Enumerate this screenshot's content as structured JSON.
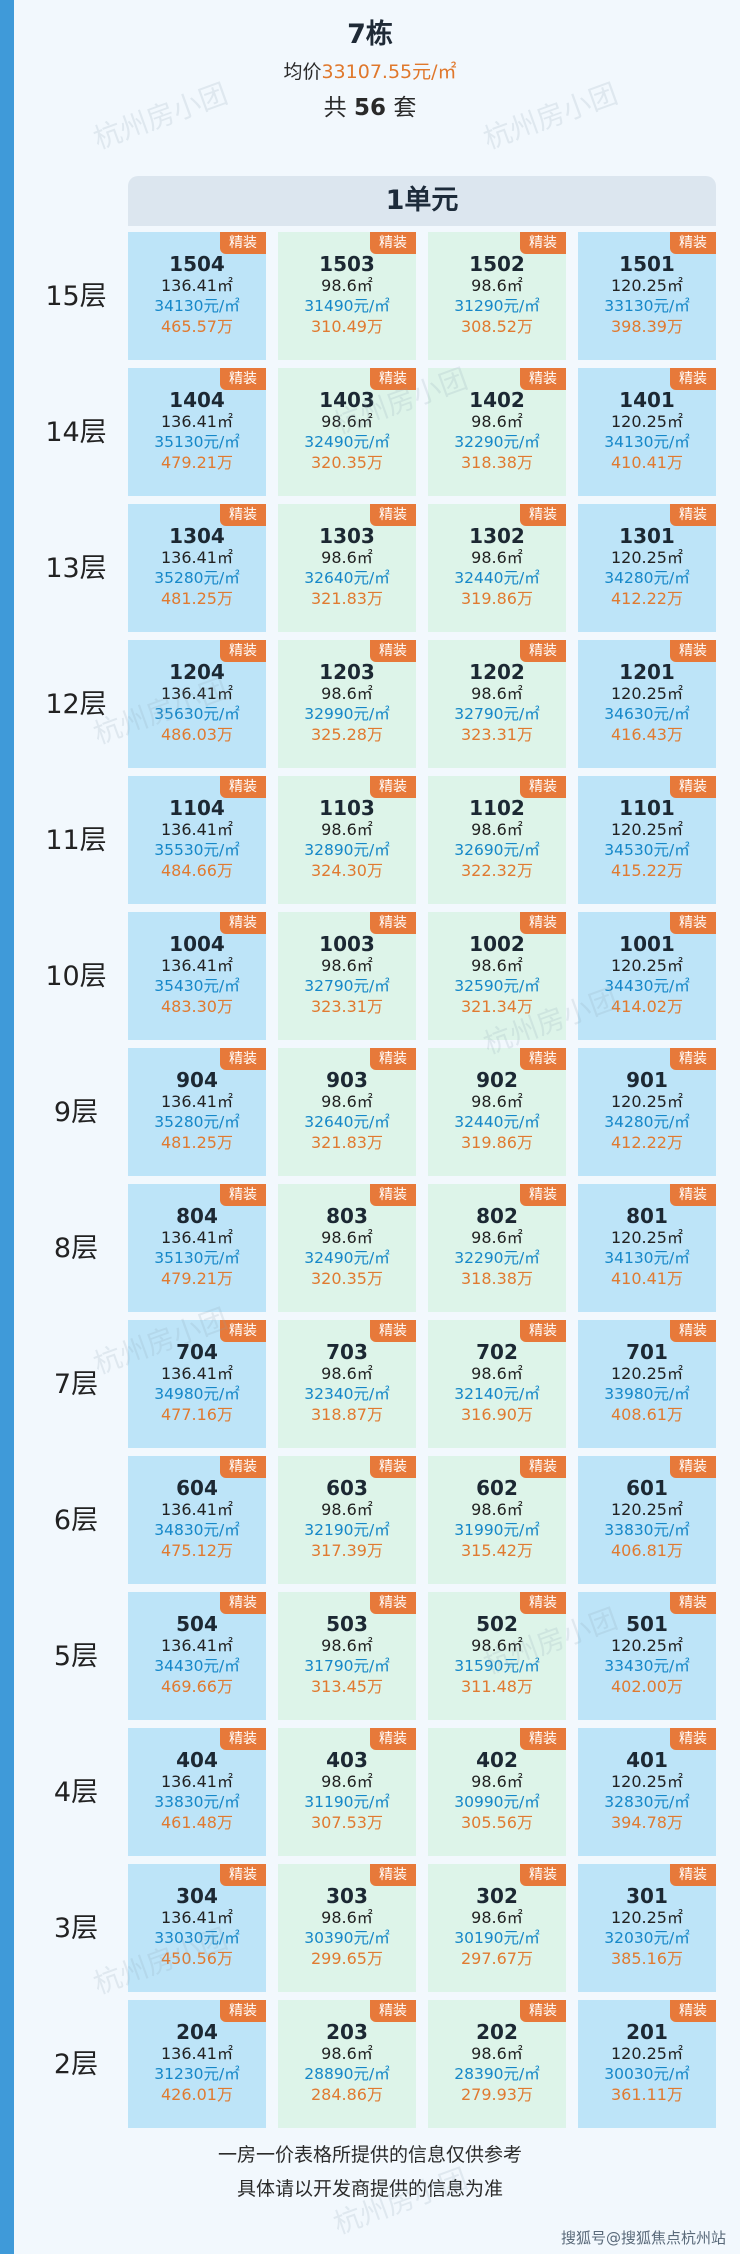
{
  "header": {
    "building": "7栋",
    "avg_price_label": "均价",
    "avg_price_value": "33107.55元/㎡",
    "count_prefix": "共",
    "count_value": "56",
    "count_suffix": "套"
  },
  "unit_label": "1单元",
  "badge_label": "精装",
  "floors": [
    {
      "label": "15层",
      "units": [
        {
          "room": "1504",
          "area": "136.41㎡",
          "unit_price": "34130元/㎡",
          "total": "465.57万"
        },
        {
          "room": "1503",
          "area": "98.6㎡",
          "unit_price": "31490元/㎡",
          "total": "310.49万"
        },
        {
          "room": "1502",
          "area": "98.6㎡",
          "unit_price": "31290元/㎡",
          "total": "308.52万"
        },
        {
          "room": "1501",
          "area": "120.25㎡",
          "unit_price": "33130元/㎡",
          "total": "398.39万"
        }
      ]
    },
    {
      "label": "14层",
      "units": [
        {
          "room": "1404",
          "area": "136.41㎡",
          "unit_price": "35130元/㎡",
          "total": "479.21万"
        },
        {
          "room": "1403",
          "area": "98.6㎡",
          "unit_price": "32490元/㎡",
          "total": "320.35万"
        },
        {
          "room": "1402",
          "area": "98.6㎡",
          "unit_price": "32290元/㎡",
          "total": "318.38万"
        },
        {
          "room": "1401",
          "area": "120.25㎡",
          "unit_price": "34130元/㎡",
          "total": "410.41万"
        }
      ]
    },
    {
      "label": "13层",
      "units": [
        {
          "room": "1304",
          "area": "136.41㎡",
          "unit_price": "35280元/㎡",
          "total": "481.25万"
        },
        {
          "room": "1303",
          "area": "98.6㎡",
          "unit_price": "32640元/㎡",
          "total": "321.83万"
        },
        {
          "room": "1302",
          "area": "98.6㎡",
          "unit_price": "32440元/㎡",
          "total": "319.86万"
        },
        {
          "room": "1301",
          "area": "120.25㎡",
          "unit_price": "34280元/㎡",
          "total": "412.22万"
        }
      ]
    },
    {
      "label": "12层",
      "units": [
        {
          "room": "1204",
          "area": "136.41㎡",
          "unit_price": "35630元/㎡",
          "total": "486.03万"
        },
        {
          "room": "1203",
          "area": "98.6㎡",
          "unit_price": "32990元/㎡",
          "total": "325.28万"
        },
        {
          "room": "1202",
          "area": "98.6㎡",
          "unit_price": "32790元/㎡",
          "total": "323.31万"
        },
        {
          "room": "1201",
          "area": "120.25㎡",
          "unit_price": "34630元/㎡",
          "total": "416.43万"
        }
      ]
    },
    {
      "label": "11层",
      "units": [
        {
          "room": "1104",
          "area": "136.41㎡",
          "unit_price": "35530元/㎡",
          "total": "484.66万"
        },
        {
          "room": "1103",
          "area": "98.6㎡",
          "unit_price": "32890元/㎡",
          "total": "324.30万"
        },
        {
          "room": "1102",
          "area": "98.6㎡",
          "unit_price": "32690元/㎡",
          "total": "322.32万"
        },
        {
          "room": "1101",
          "area": "120.25㎡",
          "unit_price": "34530元/㎡",
          "total": "415.22万"
        }
      ]
    },
    {
      "label": "10层",
      "units": [
        {
          "room": "1004",
          "area": "136.41㎡",
          "unit_price": "35430元/㎡",
          "total": "483.30万"
        },
        {
          "room": "1003",
          "area": "98.6㎡",
          "unit_price": "32790元/㎡",
          "total": "323.31万"
        },
        {
          "room": "1002",
          "area": "98.6㎡",
          "unit_price": "32590元/㎡",
          "total": "321.34万"
        },
        {
          "room": "1001",
          "area": "120.25㎡",
          "unit_price": "34430元/㎡",
          "total": "414.02万"
        }
      ]
    },
    {
      "label": "9层",
      "units": [
        {
          "room": "904",
          "area": "136.41㎡",
          "unit_price": "35280元/㎡",
          "total": "481.25万"
        },
        {
          "room": "903",
          "area": "98.6㎡",
          "unit_price": "32640元/㎡",
          "total": "321.83万"
        },
        {
          "room": "902",
          "area": "98.6㎡",
          "unit_price": "32440元/㎡",
          "total": "319.86万"
        },
        {
          "room": "901",
          "area": "120.25㎡",
          "unit_price": "34280元/㎡",
          "total": "412.22万"
        }
      ]
    },
    {
      "label": "8层",
      "units": [
        {
          "room": "804",
          "area": "136.41㎡",
          "unit_price": "35130元/㎡",
          "total": "479.21万"
        },
        {
          "room": "803",
          "area": "98.6㎡",
          "unit_price": "32490元/㎡",
          "total": "320.35万"
        },
        {
          "room": "802",
          "area": "98.6㎡",
          "unit_price": "32290元/㎡",
          "total": "318.38万"
        },
        {
          "room": "801",
          "area": "120.25㎡",
          "unit_price": "34130元/㎡",
          "total": "410.41万"
        }
      ]
    },
    {
      "label": "7层",
      "units": [
        {
          "room": "704",
          "area": "136.41㎡",
          "unit_price": "34980元/㎡",
          "total": "477.16万"
        },
        {
          "room": "703",
          "area": "98.6㎡",
          "unit_price": "32340元/㎡",
          "total": "318.87万"
        },
        {
          "room": "702",
          "area": "98.6㎡",
          "unit_price": "32140元/㎡",
          "total": "316.90万"
        },
        {
          "room": "701",
          "area": "120.25㎡",
          "unit_price": "33980元/㎡",
          "total": "408.61万"
        }
      ]
    },
    {
      "label": "6层",
      "units": [
        {
          "room": "604",
          "area": "136.41㎡",
          "unit_price": "34830元/㎡",
          "total": "475.12万"
        },
        {
          "room": "603",
          "area": "98.6㎡",
          "unit_price": "32190元/㎡",
          "total": "317.39万"
        },
        {
          "room": "602",
          "area": "98.6㎡",
          "unit_price": "31990元/㎡",
          "total": "315.42万"
        },
        {
          "room": "601",
          "area": "120.25㎡",
          "unit_price": "33830元/㎡",
          "total": "406.81万"
        }
      ]
    },
    {
      "label": "5层",
      "units": [
        {
          "room": "504",
          "area": "136.41㎡",
          "unit_price": "34430元/㎡",
          "total": "469.66万"
        },
        {
          "room": "503",
          "area": "98.6㎡",
          "unit_price": "31790元/㎡",
          "total": "313.45万"
        },
        {
          "room": "502",
          "area": "98.6㎡",
          "unit_price": "31590元/㎡",
          "total": "311.48万"
        },
        {
          "room": "501",
          "area": "120.25㎡",
          "unit_price": "33430元/㎡",
          "total": "402.00万"
        }
      ]
    },
    {
      "label": "4层",
      "units": [
        {
          "room": "404",
          "area": "136.41㎡",
          "unit_price": "33830元/㎡",
          "total": "461.48万"
        },
        {
          "room": "403",
          "area": "98.6㎡",
          "unit_price": "31190元/㎡",
          "total": "307.53万"
        },
        {
          "room": "402",
          "area": "98.6㎡",
          "unit_price": "30990元/㎡",
          "total": "305.56万"
        },
        {
          "room": "401",
          "area": "120.25㎡",
          "unit_price": "32830元/㎡",
          "total": "394.78万"
        }
      ]
    },
    {
      "label": "3层",
      "units": [
        {
          "room": "304",
          "area": "136.41㎡",
          "unit_price": "33030元/㎡",
          "total": "450.56万"
        },
        {
          "room": "303",
          "area": "98.6㎡",
          "unit_price": "30390元/㎡",
          "total": "299.65万"
        },
        {
          "room": "302",
          "area": "98.6㎡",
          "unit_price": "30190元/㎡",
          "total": "297.67万"
        },
        {
          "room": "301",
          "area": "120.25㎡",
          "unit_price": "32030元/㎡",
          "total": "385.16万"
        }
      ]
    },
    {
      "label": "2层",
      "units": [
        {
          "room": "204",
          "area": "136.41㎡",
          "unit_price": "31230元/㎡",
          "total": "426.01万"
        },
        {
          "room": "203",
          "area": "98.6㎡",
          "unit_price": "28890元/㎡",
          "total": "284.86万"
        },
        {
          "room": "202",
          "area": "98.6㎡",
          "unit_price": "28390元/㎡",
          "total": "279.93万"
        },
        {
          "room": "201",
          "area": "120.25㎡",
          "unit_price": "30030元/㎡",
          "total": "361.11万"
        }
      ]
    }
  ],
  "footer": {
    "line1": "一房一价表格所提供的信息仅供参考",
    "line2": "具体请以开发商提供的信息为准"
  },
  "source_mark": "搜狐号@搜狐焦点杭州站",
  "watermark": "杭州房小团"
}
